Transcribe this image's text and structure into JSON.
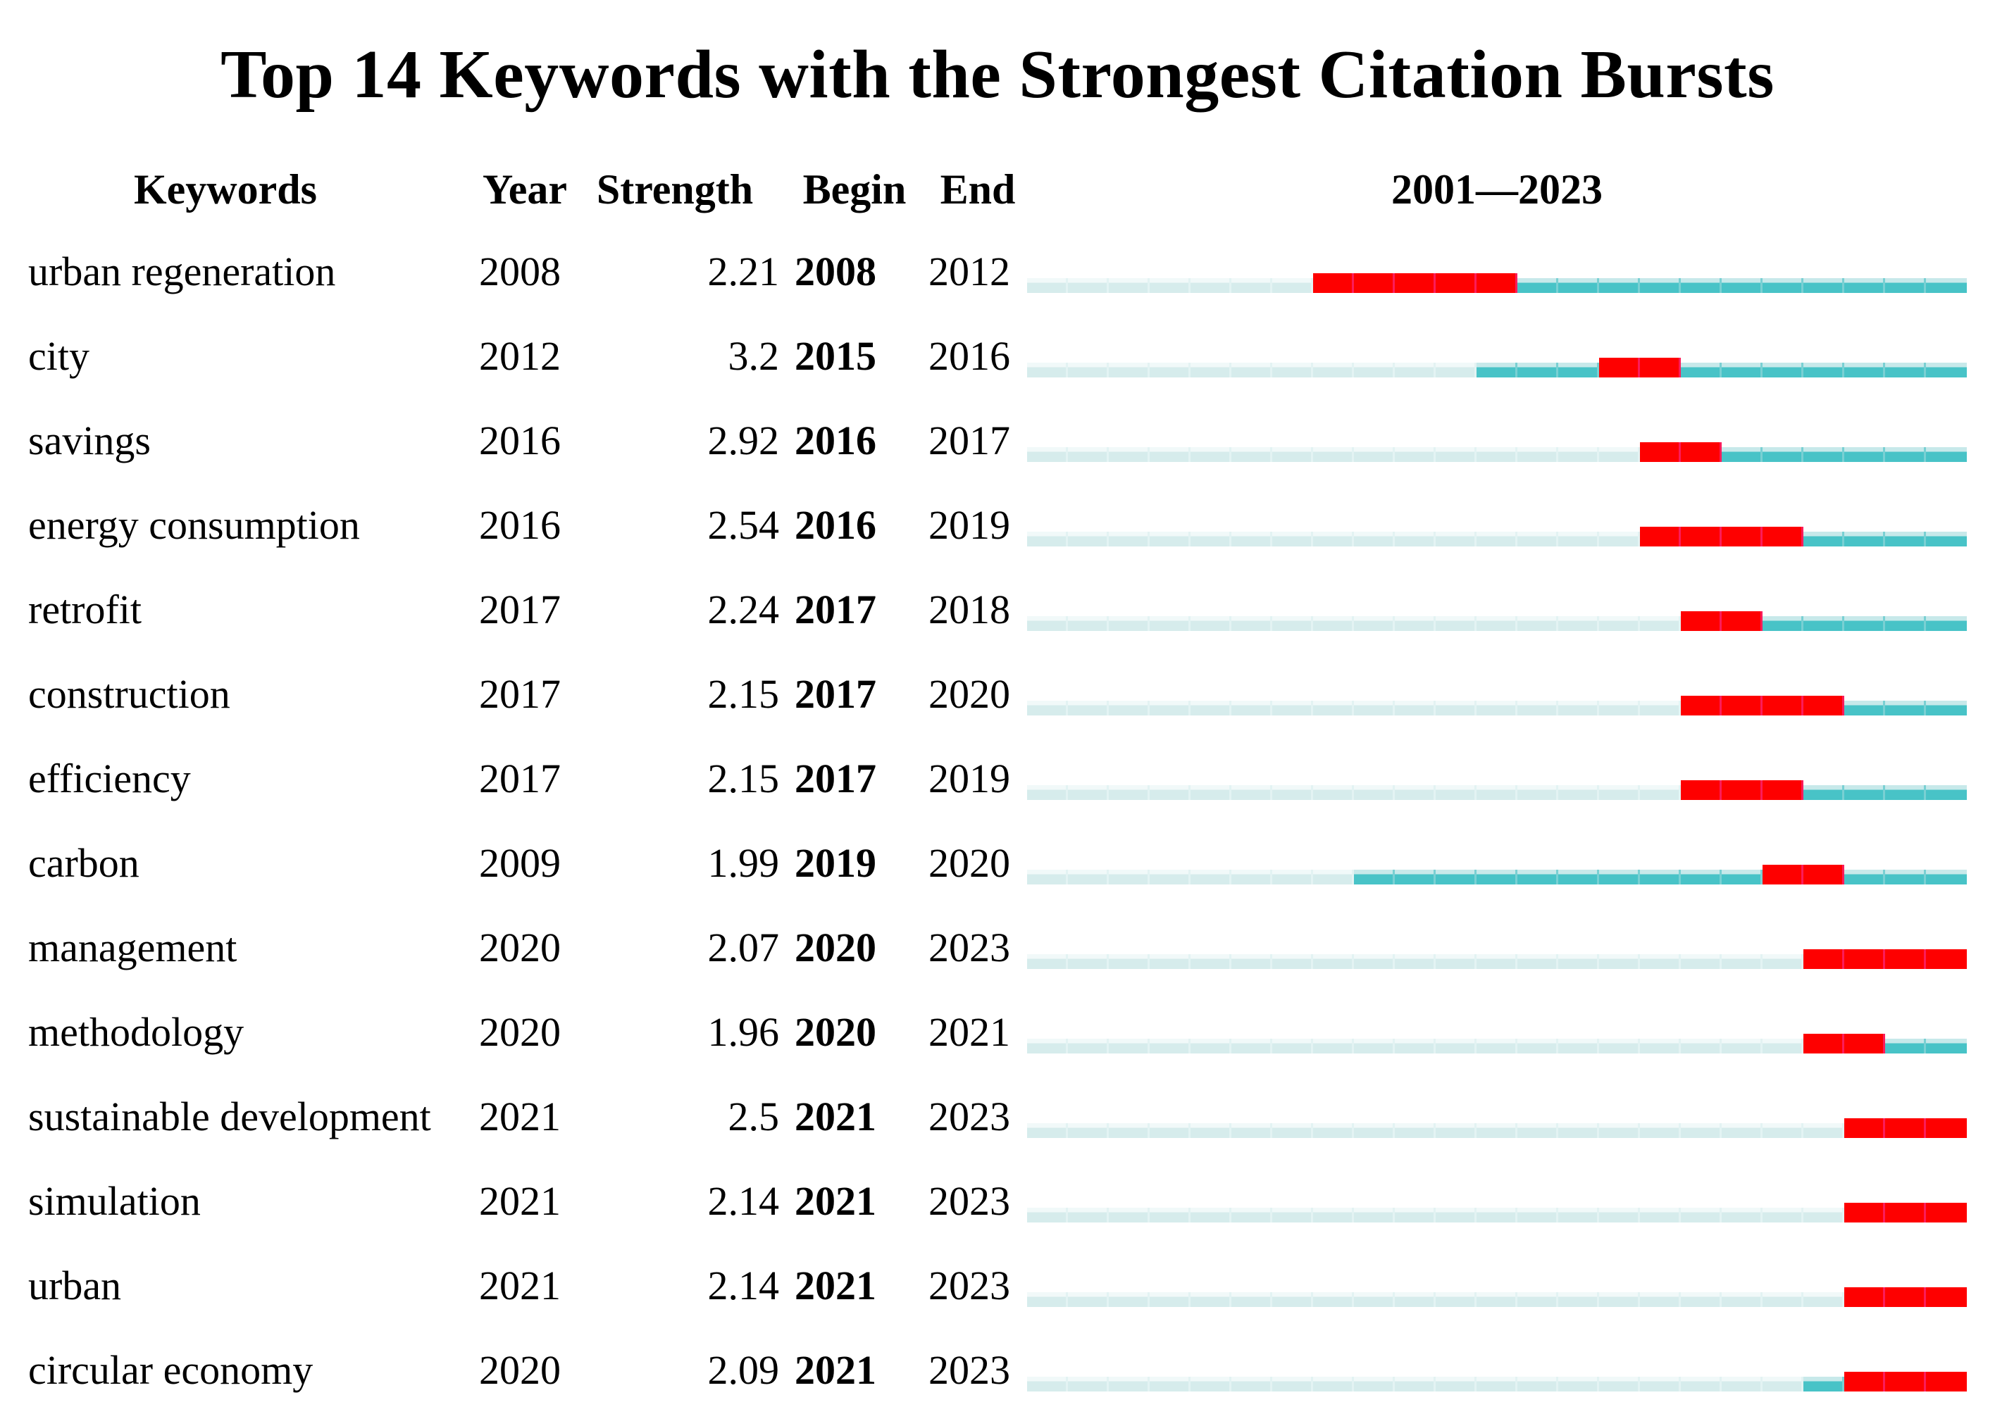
{
  "colors": {
    "pale_top": "#f1f9f9",
    "pale_main": "#d6ecec",
    "pale_sep": "#e3f3f3",
    "teal_top": "#c7e9ea",
    "teal_main": "#48c3c7",
    "teal_sep": "#79d0d3",
    "red_main": "#fe0000",
    "red_sep": "#fb1c5a",
    "text": "#000000",
    "background": "#ffffff"
  },
  "chart_data": {
    "type": "table",
    "title": "Top 14 Keywords with the Strongest Citation Bursts",
    "header": {
      "keyword": "Keywords",
      "year": "Year",
      "strength": "Strength",
      "begin": "Begin",
      "end": "End",
      "timeline": "2001—2023"
    },
    "timeline_start": 2001,
    "timeline_end": 2023,
    "segment_colors_meaning": {
      "pale": "years before keyword first appears",
      "teal": "years keyword is present (non-burst)",
      "red": "citation burst interval (Begin–End)"
    },
    "rows": [
      {
        "keyword": "urban regeneration",
        "year": 2008,
        "strength": "2.21",
        "begin": 2008,
        "end": 2012
      },
      {
        "keyword": "city",
        "year": 2012,
        "strength": "3.2",
        "begin": 2015,
        "end": 2016
      },
      {
        "keyword": "savings",
        "year": 2016,
        "strength": "2.92",
        "begin": 2016,
        "end": 2017
      },
      {
        "keyword": "energy consumption",
        "year": 2016,
        "strength": "2.54",
        "begin": 2016,
        "end": 2019
      },
      {
        "keyword": "retrofit",
        "year": 2017,
        "strength": "2.24",
        "begin": 2017,
        "end": 2018
      },
      {
        "keyword": "construction",
        "year": 2017,
        "strength": "2.15",
        "begin": 2017,
        "end": 2020
      },
      {
        "keyword": "efficiency",
        "year": 2017,
        "strength": "2.15",
        "begin": 2017,
        "end": 2019
      },
      {
        "keyword": "carbon",
        "year": 2009,
        "strength": "1.99",
        "begin": 2019,
        "end": 2020
      },
      {
        "keyword": "management",
        "year": 2020,
        "strength": "2.07",
        "begin": 2020,
        "end": 2023
      },
      {
        "keyword": "methodology",
        "year": 2020,
        "strength": "1.96",
        "begin": 2020,
        "end": 2021
      },
      {
        "keyword": "sustainable development",
        "year": 2021,
        "strength": "2.5",
        "begin": 2021,
        "end": 2023
      },
      {
        "keyword": "simulation",
        "year": 2021,
        "strength": "2.14",
        "begin": 2021,
        "end": 2023
      },
      {
        "keyword": "urban",
        "year": 2021,
        "strength": "2.14",
        "begin": 2021,
        "end": 2023
      },
      {
        "keyword": "circular economy",
        "year": 2020,
        "strength": "2.09",
        "begin": 2021,
        "end": 2023
      }
    ]
  }
}
